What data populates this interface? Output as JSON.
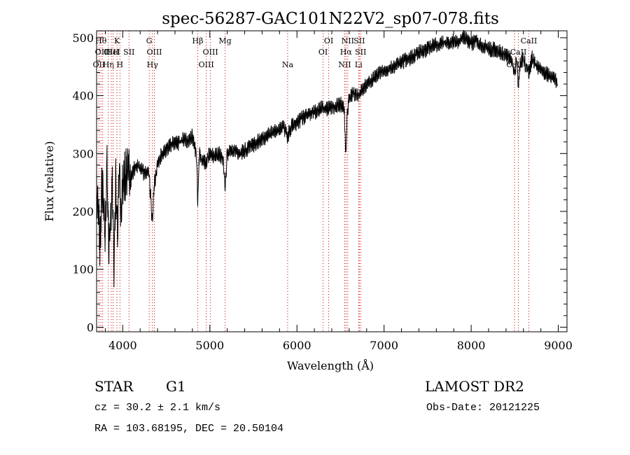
{
  "chart_data": {
    "type": "line",
    "title": "spec-56287-GAC101N22V2_sp07-078.fits",
    "xlabel": "Wavelength (Å)",
    "ylabel": "Flux (relative)",
    "xlim": [
      3700,
      9100
    ],
    "ylim": [
      -8,
      512
    ],
    "xticks": [
      4000,
      5000,
      6000,
      7000,
      8000,
      9000
    ],
    "yticks": [
      0,
      100,
      200,
      300,
      400,
      500
    ],
    "x_tick_labels": [
      "4000",
      "5000",
      "6000",
      "7000",
      "8000",
      "9000"
    ],
    "y_tick_labels": [
      "0",
      "100",
      "200",
      "300",
      "400",
      "500"
    ],
    "grid": false,
    "legend": "none",
    "line_color": "#000000",
    "line_marker_color": "#cc0000",
    "series": [
      {
        "x": [
          3700,
          3720,
          3740,
          3760,
          3780,
          3800,
          3820,
          3840,
          3860,
          3880,
          3900,
          3920,
          3940,
          3960,
          3980,
          4000,
          4050,
          4100,
          4150,
          4200,
          4250,
          4300,
          4340,
          4360,
          4400,
          4450,
          4500,
          4550,
          4600,
          4650,
          4700,
          4750,
          4800,
          4850,
          4861,
          4880,
          4900,
          4950,
          5000,
          5050,
          5100,
          5150,
          5175,
          5200,
          5250,
          5300,
          5350,
          5400,
          5450,
          5500,
          5550,
          5600,
          5650,
          5700,
          5750,
          5800,
          5850,
          5890,
          5950,
          6000,
          6050,
          6100,
          6150,
          6200,
          6250,
          6300,
          6350,
          6400,
          6450,
          6500,
          6540,
          6563,
          6580,
          6600,
          6650,
          6700,
          6750,
          6800,
          6850,
          6900,
          6950,
          7000,
          7050,
          7100,
          7150,
          7200,
          7250,
          7300,
          7350,
          7400,
          7450,
          7500,
          7550,
          7600,
          7650,
          7700,
          7750,
          7800,
          7850,
          7900,
          7950,
          8000,
          8050,
          8100,
          8150,
          8200,
          8250,
          8300,
          8350,
          8400,
          8450,
          8498,
          8520,
          8542,
          8560,
          8600,
          8662,
          8700,
          8750,
          8800,
          8850,
          8900,
          8950,
          8990
        ],
        "y": [
          240,
          200,
          140,
          250,
          210,
          160,
          290,
          120,
          190,
          240,
          110,
          250,
          160,
          270,
          200,
          250,
          270,
          260,
          280,
          275,
          265,
          270,
          180,
          245,
          280,
          300,
          305,
          315,
          320,
          318,
          325,
          322,
          330,
          295,
          210,
          300,
          290,
          285,
          300,
          295,
          300,
          290,
          240,
          300,
          305,
          302,
          300,
          305,
          310,
          315,
          320,
          325,
          330,
          335,
          338,
          340,
          345,
          330,
          350,
          352,
          360,
          365,
          370,
          372,
          375,
          380,
          378,
          380,
          382,
          385,
          380,
          295,
          375,
          395,
          405,
          400,
          410,
          420,
          425,
          435,
          440,
          445,
          445,
          450,
          455,
          458,
          462,
          465,
          470,
          475,
          478,
          480,
          485,
          488,
          490,
          492,
          490,
          495,
          493,
          500,
          498,
          490,
          495,
          488,
          485,
          480,
          480,
          478,
          475,
          470,
          465,
          440,
          460,
          420,
          455,
          462,
          440,
          465,
          450,
          445,
          440,
          435,
          430,
          420
        ]
      }
    ],
    "line_markers": [
      {
        "x": 3727,
        "labels": [
          "OII"
        ],
        "rows": [
          3
        ]
      },
      {
        "x": 3750,
        "labels": [
          "Hθ"
        ],
        "rows": [
          1
        ]
      },
      {
        "x": 3770,
        "labels": [
          "OIII"
        ],
        "rows": [
          2
        ]
      },
      {
        "x": 3835,
        "labels": [
          "Hη"
        ],
        "rows": [
          3
        ]
      },
      {
        "x": 3869,
        "labels": [
          "OIII"
        ],
        "rows": [
          2
        ]
      },
      {
        "x": 3889,
        "labels": [
          "HeI"
        ],
        "rows": [
          2
        ]
      },
      {
        "x": 3934,
        "labels": [
          "K"
        ],
        "rows": [
          1
        ]
      },
      {
        "x": 3968,
        "labels": [
          "H"
        ],
        "rows": [
          3
        ]
      },
      {
        "x": 4072,
        "labels": [
          "SII"
        ],
        "rows": [
          2
        ]
      },
      {
        "x": 4304,
        "labels": [
          "G"
        ],
        "rows": [
          1
        ]
      },
      {
        "x": 4341,
        "labels": [
          "Hγ"
        ],
        "rows": [
          3
        ]
      },
      {
        "x": 4363,
        "labels": [
          "OIII"
        ],
        "rows": [
          2
        ]
      },
      {
        "x": 4861,
        "labels": [
          "Hβ"
        ],
        "rows": [
          1
        ]
      },
      {
        "x": 4959,
        "labels": [
          "OIII"
        ],
        "rows": [
          3
        ]
      },
      {
        "x": 5007,
        "labels": [
          "OIII"
        ],
        "rows": [
          2
        ]
      },
      {
        "x": 5175,
        "labels": [
          "Mg"
        ],
        "rows": [
          1
        ]
      },
      {
        "x": 5893,
        "labels": [
          "Na"
        ],
        "rows": [
          3
        ]
      },
      {
        "x": 6300,
        "labels": [
          "OI"
        ],
        "rows": [
          2
        ]
      },
      {
        "x": 6364,
        "labels": [
          "OI"
        ],
        "rows": [
          1
        ]
      },
      {
        "x": 6548,
        "labels": [
          "NII"
        ],
        "rows": [
          3
        ]
      },
      {
        "x": 6563,
        "labels": [
          "Hα"
        ],
        "rows": [
          2
        ]
      },
      {
        "x": 6583,
        "labels": [
          "NII"
        ],
        "rows": [
          1
        ]
      },
      {
        "x": 6708,
        "labels": [
          "Li"
        ],
        "rows": [
          3
        ]
      },
      {
        "x": 6716,
        "labels": [
          "SII"
        ],
        "rows": [
          1
        ]
      },
      {
        "x": 6731,
        "labels": [
          "SII"
        ],
        "rows": [
          2
        ]
      },
      {
        "x": 8498,
        "labels": [
          "CaII"
        ],
        "rows": [
          3
        ]
      },
      {
        "x": 8542,
        "labels": [
          "CaII"
        ],
        "rows": [
          2
        ]
      },
      {
        "x": 8662,
        "labels": [
          "CaII"
        ],
        "rows": [
          1
        ]
      }
    ]
  },
  "info": {
    "obj_class": "STAR",
    "obj_subclass": "G1",
    "survey": "LAMOST DR2",
    "cz": "cz = 30.2 ± 2.1 km/s",
    "obs_date": "Obs-Date: 20121225",
    "radec": "RA = 103.68195, DEC =  20.50104"
  }
}
